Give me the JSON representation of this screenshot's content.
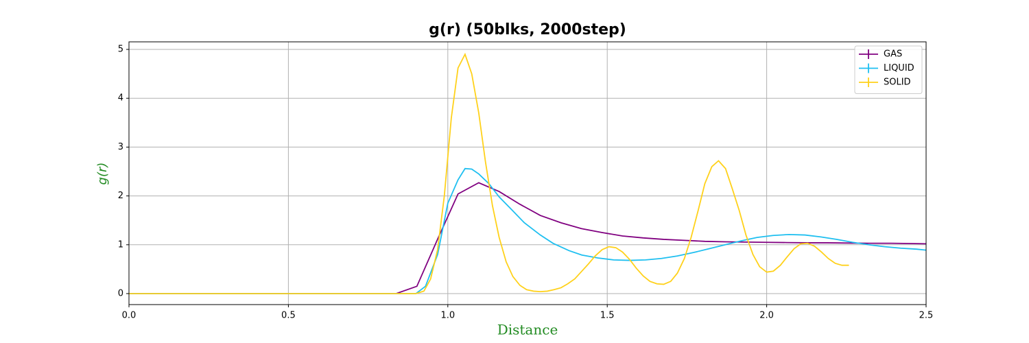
{
  "chart_data": {
    "type": "line",
    "title": "g(r) (50blks, 2000step)",
    "x_label": "Distance",
    "y_label": "g(r)",
    "label_color": "#228b22",
    "xlim": [
      0,
      2.5
    ],
    "ylim": [
      -0.225,
      5.155
    ],
    "xticks": [
      {
        "value": 0,
        "label": "0.0"
      },
      0.5,
      {
        "value": 1,
        "label": "1.0"
      },
      1.5,
      {
        "value": 2,
        "label": "2.0"
      },
      2.5
    ],
    "yticks": [
      0,
      1,
      2,
      3,
      4,
      5
    ],
    "grid": true,
    "legend": "upper right",
    "series": [
      {
        "name": "GAS",
        "color": "#800080",
        "x": [
          0,
          0.838,
          0.903,
          0.967,
          1.032,
          1.097,
          1.161,
          1.226,
          1.29,
          1.355,
          1.419,
          1.484,
          1.548,
          1.613,
          1.677,
          1.742,
          1.806,
          1.871,
          1.935,
          2.0,
          2.064,
          2.129,
          2.19,
          2.26,
          2.32,
          2.39,
          2.45,
          2.5
        ],
        "values": [
          0,
          0,
          0.15,
          1.1,
          2.04,
          2.27,
          2.09,
          1.83,
          1.6,
          1.45,
          1.33,
          1.25,
          1.18,
          1.14,
          1.11,
          1.09,
          1.07,
          1.06,
          1.055,
          1.05,
          1.045,
          1.04,
          1.04,
          1.035,
          1.03,
          1.03,
          1.025,
          1.02
        ]
      },
      {
        "name": "LIQUID",
        "color": "#1ebff0",
        "x": [
          0,
          0.9,
          0.93,
          0.968,
          1.0,
          1.032,
          1.054,
          1.075,
          1.097,
          1.129,
          1.161,
          1.2,
          1.24,
          1.29,
          1.33,
          1.38,
          1.42,
          1.47,
          1.52,
          1.57,
          1.62,
          1.67,
          1.72,
          1.77,
          1.82,
          1.87,
          1.92,
          1.97,
          2.02,
          2.07,
          2.12,
          2.17,
          2.22,
          2.27,
          2.32,
          2.37,
          2.42,
          2.47,
          2.5
        ],
        "values": [
          0,
          0,
          0.15,
          0.8,
          1.85,
          2.33,
          2.56,
          2.55,
          2.45,
          2.25,
          1.98,
          1.72,
          1.45,
          1.2,
          1.03,
          0.88,
          0.79,
          0.73,
          0.69,
          0.68,
          0.69,
          0.72,
          0.77,
          0.84,
          0.92,
          1.0,
          1.08,
          1.15,
          1.19,
          1.21,
          1.2,
          1.16,
          1.11,
          1.05,
          1.0,
          0.96,
          0.93,
          0.91,
          0.89
        ]
      },
      {
        "name": "SOLID",
        "color": "#ffd11a",
        "x": [
          0,
          0.9,
          0.925,
          0.946,
          0.968,
          0.989,
          1.011,
          1.032,
          1.054,
          1.075,
          1.097,
          1.118,
          1.14,
          1.161,
          1.183,
          1.204,
          1.226,
          1.247,
          1.269,
          1.29,
          1.312,
          1.333,
          1.355,
          1.376,
          1.398,
          1.419,
          1.44,
          1.462,
          1.484,
          1.505,
          1.527,
          1.548,
          1.57,
          1.591,
          1.613,
          1.634,
          1.656,
          1.677,
          1.699,
          1.72,
          1.742,
          1.763,
          1.785,
          1.806,
          1.828,
          1.849,
          1.871,
          1.892,
          1.914,
          1.935,
          1.957,
          1.978,
          2.0,
          2.021,
          2.043,
          2.064,
          2.086,
          2.107,
          2.129,
          2.15,
          2.172,
          2.193,
          2.215,
          2.236,
          2.258
        ],
        "values": [
          0,
          0,
          0.05,
          0.3,
          0.9,
          2.0,
          3.6,
          4.62,
          4.9,
          4.5,
          3.7,
          2.7,
          1.8,
          1.15,
          0.65,
          0.35,
          0.17,
          0.08,
          0.05,
          0.04,
          0.05,
          0.08,
          0.12,
          0.2,
          0.3,
          0.45,
          0.6,
          0.77,
          0.9,
          0.96,
          0.94,
          0.85,
          0.7,
          0.52,
          0.36,
          0.25,
          0.2,
          0.19,
          0.25,
          0.42,
          0.72,
          1.15,
          1.7,
          2.25,
          2.6,
          2.72,
          2.56,
          2.15,
          1.7,
          1.2,
          0.8,
          0.55,
          0.44,
          0.46,
          0.58,
          0.75,
          0.92,
          1.02,
          1.03,
          0.97,
          0.85,
          0.72,
          0.62,
          0.58,
          0.58
        ]
      }
    ]
  }
}
